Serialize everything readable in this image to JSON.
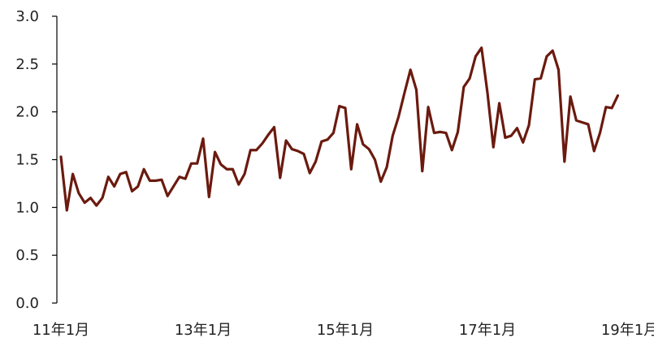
{
  "chart_data": {
    "type": "line",
    "title": "",
    "xlabel": "",
    "ylabel": "",
    "ylim": [
      0,
      3.0
    ],
    "yticks": [
      "0.0",
      "0.5",
      "1.0",
      "1.5",
      "2.0",
      "2.5",
      "3.0"
    ],
    "xticks": [
      "11年1月",
      "13年1月",
      "15年1月",
      "17年1月",
      "19年1月"
    ],
    "x_start": "2011-01",
    "grid": false,
    "legend": "none",
    "colors": {
      "line": "#6b1a0f",
      "axis": "#000000",
      "text": "#222222"
    },
    "series": [
      {
        "values": [
          1.53,
          0.97,
          1.35,
          1.15,
          1.05,
          1.1,
          1.02,
          1.1,
          1.32,
          1.22,
          1.35,
          1.37,
          1.17,
          1.22,
          1.4,
          1.28,
          1.28,
          1.29,
          1.12,
          1.22,
          1.32,
          1.3,
          1.46,
          1.46,
          1.72,
          1.11,
          1.58,
          1.45,
          1.4,
          1.4,
          1.24,
          1.35,
          1.6,
          1.6,
          1.67,
          1.76,
          1.84,
          1.31,
          1.7,
          1.61,
          1.59,
          1.56,
          1.36,
          1.48,
          1.69,
          1.71,
          1.78,
          2.06,
          2.04,
          1.4,
          1.87,
          1.66,
          1.61,
          1.5,
          1.27,
          1.42,
          1.75,
          1.95,
          2.2,
          2.44,
          2.23,
          1.38,
          2.05,
          1.78,
          1.79,
          1.78,
          1.6,
          1.79,
          2.26,
          2.35,
          2.58,
          2.67,
          2.2,
          1.63,
          2.09,
          1.73,
          1.75,
          1.83,
          1.68,
          1.86,
          2.34,
          2.35,
          2.58,
          2.64,
          2.44,
          1.48,
          2.16,
          1.91,
          1.89,
          1.87,
          1.59,
          1.78,
          2.05,
          2.04,
          2.17
        ]
      }
    ]
  }
}
